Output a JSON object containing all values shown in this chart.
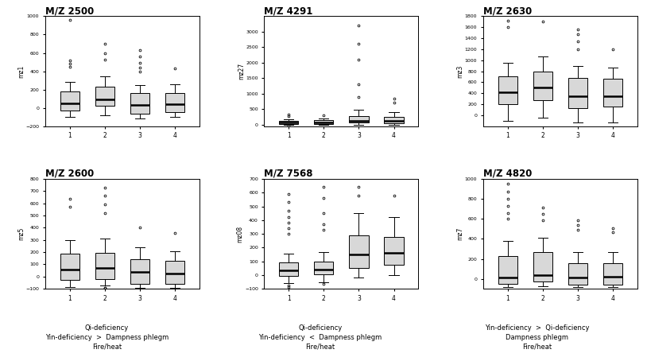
{
  "titles": [
    "M/Z 2500",
    "M/Z 4291",
    "M/Z 2630",
    "M/Z 2600",
    "M/Z 7568",
    "M/Z 4820"
  ],
  "ylabels": [
    "mz1",
    "mz27",
    "mz3",
    "mz5",
    "mz08",
    "mz7"
  ],
  "captions": [
    "Qi-deficiency\nYin-deficiency  >  Dampness phlegm\nFire/heat",
    "Qi-deficiency\nYin-deficiency  <  Dampness phlegm\nFire/heat",
    "Yin-deficiency  >  Qi-deficiency\nDampness phlegm\nFire/heat"
  ],
  "box_color": "#d8d8d8",
  "median_color": "#000000",
  "whisker_color": "#000000",
  "flier_color": "#000000",
  "background_color": "#ffffff",
  "panels": [
    {
      "ylim": [
        -200,
        1000
      ],
      "yticks": [
        -200,
        0,
        200,
        400,
        600,
        800,
        1000
      ],
      "boxes": [
        {
          "q1": -30,
          "median": 50,
          "q3": 180,
          "whislo": -100,
          "whishi": 280,
          "fliers_high": [
            450,
            480,
            520,
            960
          ],
          "fliers_low": []
        },
        {
          "q1": 20,
          "median": 90,
          "q3": 230,
          "whislo": -80,
          "whishi": 340,
          "fliers_high": [
            530,
            600,
            700
          ],
          "fliers_low": []
        },
        {
          "q1": -60,
          "median": 30,
          "q3": 160,
          "whislo": -120,
          "whishi": 250,
          "fliers_high": [
            400,
            440,
            490,
            560,
            630
          ],
          "fliers_low": []
        },
        {
          "q1": -50,
          "median": 40,
          "q3": 160,
          "whislo": -100,
          "whishi": 260,
          "fliers_high": [
            430
          ],
          "fliers_low": []
        }
      ]
    },
    {
      "ylim": [
        -50,
        3500
      ],
      "yticks": [
        0,
        500,
        1000,
        1500,
        2000,
        2500,
        3000
      ],
      "boxes": [
        {
          "q1": 20,
          "median": 65,
          "q3": 110,
          "whislo": -15,
          "whishi": 165,
          "fliers_high": [
            280,
            320
          ],
          "fliers_low": [
            -30
          ]
        },
        {
          "q1": 25,
          "median": 75,
          "q3": 145,
          "whislo": -10,
          "whishi": 210,
          "fliers_high": [
            300
          ],
          "fliers_low": []
        },
        {
          "q1": 60,
          "median": 130,
          "q3": 280,
          "whislo": 0,
          "whishi": 480,
          "fliers_high": [
            900,
            1300,
            2100,
            2600,
            3200
          ],
          "fliers_low": []
        },
        {
          "q1": 50,
          "median": 120,
          "q3": 240,
          "whislo": 0,
          "whishi": 400,
          "fliers_high": [
            700,
            850
          ],
          "fliers_low": []
        }
      ]
    },
    {
      "ylim": [
        -200,
        1800
      ],
      "yticks": [
        0,
        200,
        400,
        600,
        800,
        1000,
        1200,
        1400,
        1600,
        1800
      ],
      "boxes": [
        {
          "q1": 200,
          "median": 420,
          "q3": 700,
          "whislo": -100,
          "whishi": 950,
          "fliers_high": [
            1600,
            1720
          ],
          "fliers_low": []
        },
        {
          "q1": 270,
          "median": 500,
          "q3": 800,
          "whislo": -50,
          "whishi": 1070,
          "fliers_high": [
            1700
          ],
          "fliers_low": []
        },
        {
          "q1": 130,
          "median": 340,
          "q3": 680,
          "whislo": -130,
          "whishi": 900,
          "fliers_high": [
            1200,
            1350,
            1480,
            1560
          ],
          "fliers_low": []
        },
        {
          "q1": 160,
          "median": 350,
          "q3": 660,
          "whislo": -130,
          "whishi": 870,
          "fliers_high": [
            1200
          ],
          "fliers_low": []
        }
      ]
    },
    {
      "ylim": [
        -100,
        800
      ],
      "yticks": [
        -100,
        0,
        100,
        200,
        300,
        400,
        500,
        600,
        700,
        800
      ],
      "boxes": [
        {
          "q1": -30,
          "median": 60,
          "q3": 190,
          "whislo": -85,
          "whishi": 300,
          "fliers_high": [
            570,
            640
          ],
          "fliers_low": []
        },
        {
          "q1": -20,
          "median": 70,
          "q3": 195,
          "whislo": -75,
          "whishi": 310,
          "fliers_high": [
            520,
            590,
            660,
            730
          ],
          "fliers_low": [
            -90,
            -95
          ]
        },
        {
          "q1": -60,
          "median": 35,
          "q3": 145,
          "whislo": -95,
          "whishi": 240,
          "fliers_high": [
            400
          ],
          "fliers_low": [
            -100
          ]
        },
        {
          "q1": -60,
          "median": 25,
          "q3": 130,
          "whislo": -90,
          "whishi": 210,
          "fliers_high": [
            360
          ],
          "fliers_low": []
        }
      ]
    },
    {
      "ylim": [
        -100,
        700
      ],
      "yticks": [
        -100,
        0,
        100,
        200,
        300,
        400,
        500,
        600,
        700
      ],
      "boxes": [
        {
          "q1": -5,
          "median": 35,
          "q3": 90,
          "whislo": -60,
          "whishi": 155,
          "fliers_high": [
            300,
            340,
            380,
            420,
            470,
            530,
            590
          ],
          "fliers_low": [
            -75,
            -85
          ]
        },
        {
          "q1": 5,
          "median": 40,
          "q3": 100,
          "whislo": -50,
          "whishi": 165,
          "fliers_high": [
            330,
            370,
            450,
            560,
            640
          ],
          "fliers_low": [
            -65
          ]
        },
        {
          "q1": 50,
          "median": 150,
          "q3": 290,
          "whislo": -20,
          "whishi": 450,
          "fliers_high": [
            580,
            640
          ],
          "fliers_low": []
        },
        {
          "q1": 75,
          "median": 160,
          "q3": 275,
          "whislo": 0,
          "whishi": 420,
          "fliers_high": [
            580
          ],
          "fliers_low": []
        }
      ]
    },
    {
      "ylim": [
        -100,
        1000
      ],
      "yticks": [
        0,
        200,
        400,
        600,
        800,
        1000
      ],
      "boxes": [
        {
          "q1": -50,
          "median": 15,
          "q3": 230,
          "whislo": -80,
          "whishi": 380,
          "fliers_high": [
            600,
            660,
            730,
            800,
            870,
            950
          ],
          "fliers_low": []
        },
        {
          "q1": -25,
          "median": 35,
          "q3": 270,
          "whislo": -75,
          "whishi": 410,
          "fliers_high": [
            590,
            650,
            710
          ],
          "fliers_low": []
        },
        {
          "q1": -60,
          "median": 15,
          "q3": 160,
          "whislo": -80,
          "whishi": 270,
          "fliers_high": [
            490,
            540,
            590
          ],
          "fliers_low": []
        },
        {
          "q1": -55,
          "median": 20,
          "q3": 160,
          "whislo": -80,
          "whishi": 270,
          "fliers_high": [
            470,
            510
          ],
          "fliers_low": []
        }
      ]
    }
  ]
}
